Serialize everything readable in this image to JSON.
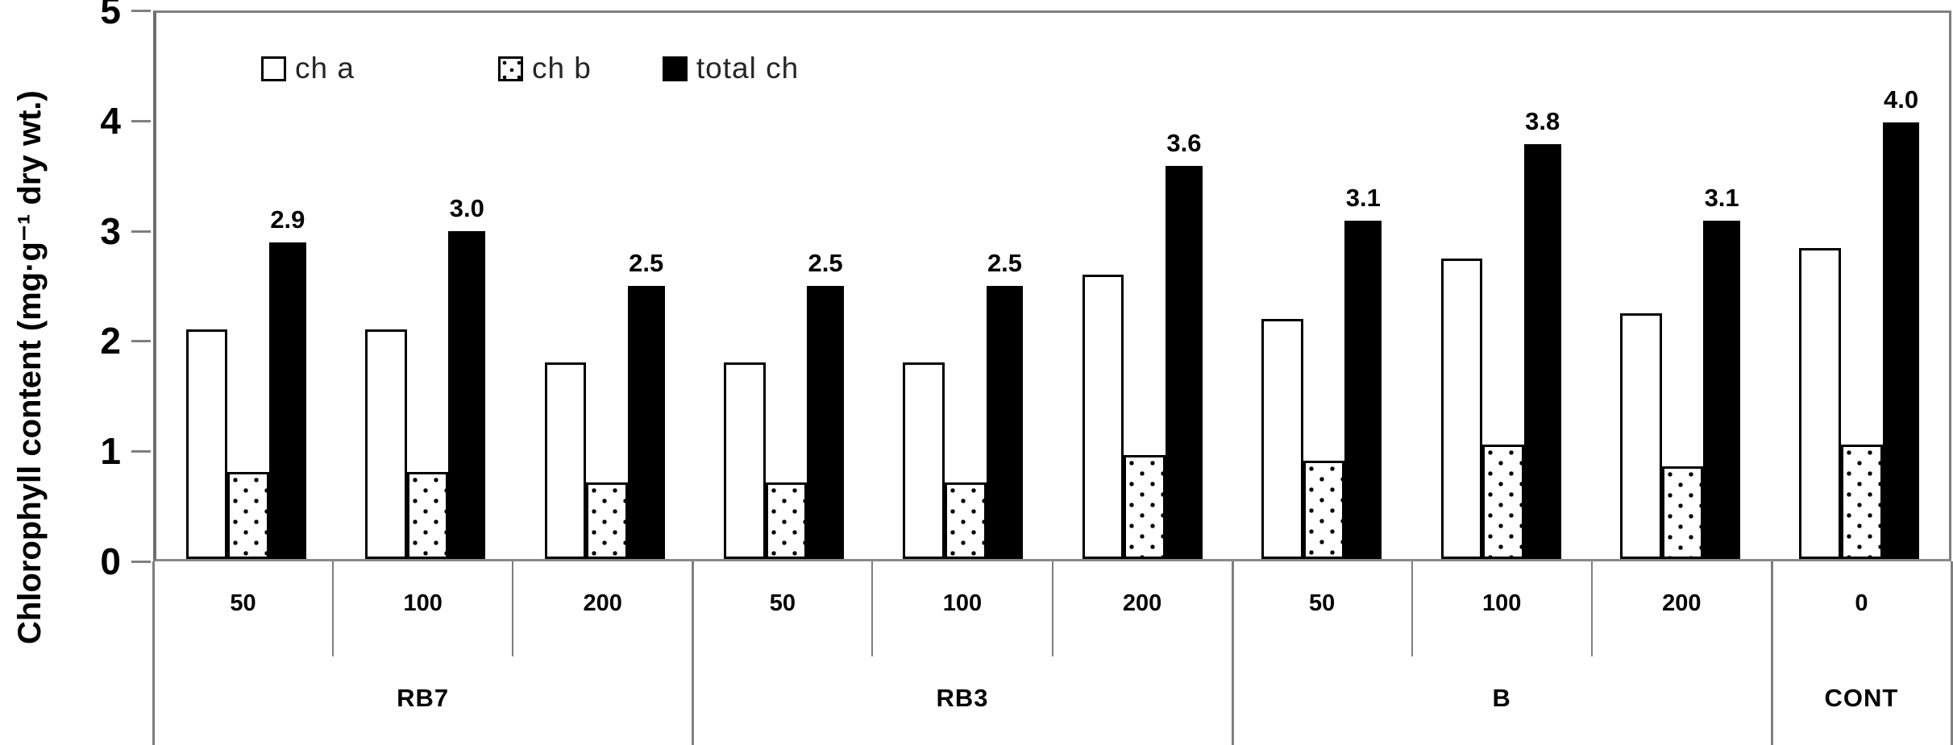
{
  "figure": {
    "y_axis_title": "Chlorophyll content (mg·g⁻¹ dry wt.)"
  },
  "legend": {
    "position": "top-left-inside",
    "items": [
      {
        "label": "ch a",
        "swatch": "white-square-icon",
        "fill": "white"
      },
      {
        "label": "ch b",
        "swatch": "dotted-square-icon",
        "fill": "dotted"
      },
      {
        "label": "total ch",
        "swatch": "black-square-icon",
        "fill": "black"
      }
    ]
  },
  "colors": {
    "bar_fill_total": "#000000",
    "bar_fill_cha": "#ffffff",
    "bar_pattern_chb": "black dots on white",
    "axis": "#7f7f7f",
    "text": "#000000",
    "legend_text": "#262626"
  },
  "chart_data": {
    "type": "bar",
    "title": "",
    "xlabel": "",
    "ylabel": "Chlorophyll content (mg·g⁻¹ dry wt.)",
    "ylim": [
      0,
      5
    ],
    "yticks": [
      0,
      1,
      2,
      3,
      4,
      5
    ],
    "grid": false,
    "legend_position": "top-left-inside",
    "x_groups": [
      {
        "label": "RB7",
        "ticks": [
          "50",
          "100",
          "200"
        ]
      },
      {
        "label": "RB3",
        "ticks": [
          "50",
          "100",
          "200"
        ]
      },
      {
        "label": "B",
        "ticks": [
          "50",
          "100",
          "200"
        ]
      },
      {
        "label": "CONT",
        "ticks": [
          "0"
        ]
      }
    ],
    "categories": [
      "RB7 50",
      "RB7 100",
      "RB7 200",
      "RB3 50",
      "RB3 100",
      "RB3 200",
      "B 50",
      "B 100",
      "B 200",
      "CONT 0"
    ],
    "series": [
      {
        "name": "ch a",
        "fill": "white",
        "values": [
          2.1,
          2.1,
          1.8,
          1.8,
          1.8,
          2.6,
          2.2,
          2.75,
          2.25,
          2.85
        ]
      },
      {
        "name": "ch b",
        "fill": "dotted",
        "values": [
          0.8,
          0.8,
          0.7,
          0.7,
          0.7,
          0.95,
          0.9,
          1.05,
          0.85,
          1.05
        ]
      },
      {
        "name": "total ch",
        "fill": "black",
        "values": [
          2.9,
          3.0,
          2.5,
          2.5,
          2.5,
          3.6,
          3.1,
          3.8,
          3.1,
          4.0
        ],
        "data_labels": [
          "2.9",
          "3.0",
          "2.5",
          "2.5",
          "2.5",
          "3.6",
          "3.1",
          "3.8",
          "3.1",
          "4.0"
        ]
      }
    ]
  }
}
